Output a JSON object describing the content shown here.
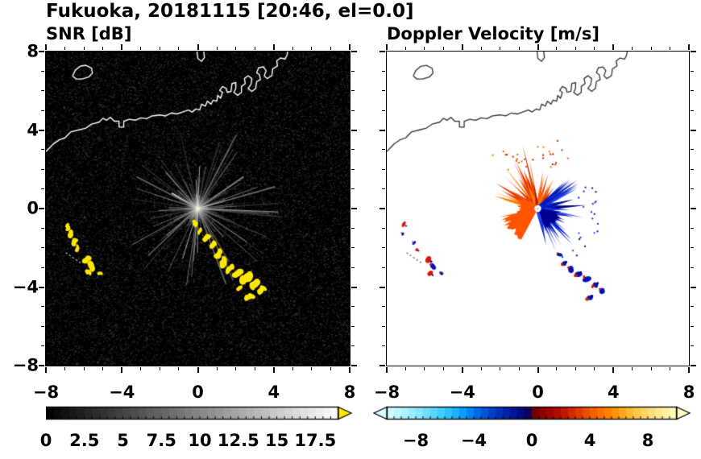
{
  "title": "Fukuoka, 20181115 [20:46, el=0.0]",
  "panels": {
    "snr": {
      "subtitle": "SNR [dB]"
    },
    "velocity": {
      "subtitle": "Doppler Velocity [m/s]"
    }
  },
  "coastline_paths": [
    [
      [
        -8,
        2.9
      ],
      [
        -7.6,
        3.3
      ],
      [
        -7.3,
        3.5
      ],
      [
        -7.0,
        3.6
      ],
      [
        -6.7,
        3.9
      ],
      [
        -6.3,
        4.0
      ],
      [
        -5.9,
        4.1
      ],
      [
        -5.6,
        4.3
      ],
      [
        -5.2,
        4.4
      ],
      [
        -5.0,
        4.6
      ],
      [
        -4.8,
        4.5
      ],
      [
        -4.6,
        4.65
      ],
      [
        -4.4,
        4.45
      ],
      [
        -4.15,
        4.45
      ],
      [
        -4.15,
        4.15
      ],
      [
        -3.9,
        4.15
      ],
      [
        -3.9,
        4.45
      ],
      [
        -3.6,
        4.55
      ],
      [
        -3.3,
        4.5
      ],
      [
        -3.0,
        4.62
      ],
      [
        -2.7,
        4.58
      ],
      [
        -2.4,
        4.72
      ],
      [
        -2.0,
        4.77
      ],
      [
        -1.7,
        4.72
      ],
      [
        -1.4,
        4.87
      ],
      [
        -1.1,
        4.82
      ],
      [
        -0.8,
        4.92
      ],
      [
        -0.5,
        5.02
      ],
      [
        -0.3,
        4.92
      ],
      [
        -0.1,
        5.07
      ],
      [
        0.1,
        5.02
      ],
      [
        0.2,
        5.32
      ],
      [
        0.4,
        5.22
      ],
      [
        0.5,
        5.47
      ],
      [
        0.7,
        5.32
      ],
      [
        0.8,
        5.52
      ],
      [
        1.0,
        5.47
      ],
      [
        1.05,
        5.77
      ],
      [
        1.2,
        5.62
      ],
      [
        1.3,
        5.92
      ],
      [
        1.15,
        6.02
      ],
      [
        1.3,
        6.22
      ],
      [
        1.5,
        6.12
      ],
      [
        1.55,
        5.92
      ],
      [
        1.75,
        5.97
      ],
      [
        1.8,
        6.37
      ],
      [
        2.0,
        6.42
      ],
      [
        2.0,
        6.12
      ],
      [
        1.9,
        5.92
      ],
      [
        2.1,
        5.77
      ],
      [
        2.3,
        5.92
      ],
      [
        2.3,
        6.22
      ],
      [
        2.5,
        6.37
      ],
      [
        2.45,
        6.62
      ],
      [
        2.65,
        6.77
      ],
      [
        2.85,
        6.62
      ],
      [
        2.8,
        6.32
      ],
      [
        2.65,
        6.12
      ],
      [
        2.85,
        5.97
      ],
      [
        3.05,
        6.12
      ],
      [
        3.1,
        6.47
      ],
      [
        3.3,
        6.57
      ],
      [
        3.25,
        6.82
      ],
      [
        3.1,
        6.92
      ],
      [
        3.2,
        7.17
      ],
      [
        3.45,
        7.22
      ],
      [
        3.6,
        7.02
      ],
      [
        3.5,
        6.77
      ],
      [
        3.65,
        6.62
      ],
      [
        3.9,
        6.77
      ],
      [
        3.95,
        7.12
      ],
      [
        4.2,
        7.27
      ],
      [
        4.15,
        7.52
      ],
      [
        4.35,
        7.67
      ],
      [
        4.6,
        7.62
      ],
      [
        4.7,
        7.82
      ],
      [
        4.75,
        8.1
      ]
    ],
    [
      [
        -6.6,
        6.75
      ],
      [
        -6.45,
        7.05
      ],
      [
        -6.2,
        7.25
      ],
      [
        -5.9,
        7.3
      ],
      [
        -5.6,
        7.15
      ],
      [
        -5.55,
        6.9
      ],
      [
        -5.75,
        6.7
      ],
      [
        -6.1,
        6.6
      ],
      [
        -6.4,
        6.6
      ],
      [
        -6.6,
        6.75
      ]
    ],
    [
      [
        -0.05,
        8.1
      ],
      [
        0.0,
        7.65
      ],
      [
        0.2,
        7.5
      ],
      [
        0.35,
        7.7
      ],
      [
        0.3,
        8.1
      ]
    ]
  ],
  "chart_data": [
    {
      "type": "heatmap",
      "panel": "snr",
      "title": "SNR [dB]",
      "xlim": [
        -8,
        8
      ],
      "ylim": [
        -8,
        8
      ],
      "xticks": [
        -8,
        -4,
        0,
        4,
        8
      ],
      "yticks": [
        -8,
        -4,
        0,
        4,
        8
      ],
      "minor_tick_step": 1,
      "background_color": "#000000",
      "coastline_color": "#ffffff",
      "radar_center": [
        0,
        0
      ],
      "beams": {
        "count": 120,
        "max_length": 4.5,
        "color": "#c8c8c8"
      },
      "noise_dot_count": 15000,
      "echo_color": "#ffe800",
      "echoes_southeast": [
        [
          -0.15,
          -0.75,
          4,
          120
        ],
        [
          0.1,
          -1.15,
          4,
          60
        ],
        [
          0.45,
          -1.5,
          5,
          45
        ],
        [
          0.8,
          -1.85,
          5,
          50
        ],
        [
          1.1,
          -2.3,
          6,
          60
        ],
        [
          1.35,
          -2.75,
          6,
          70
        ],
        [
          1.7,
          -3.05,
          6,
          40
        ],
        [
          2.1,
          -3.3,
          7,
          35
        ],
        [
          2.55,
          -3.55,
          8,
          30
        ],
        [
          3.0,
          -3.85,
          7,
          40
        ],
        [
          3.35,
          -4.15,
          6,
          45
        ],
        [
          2.7,
          -4.5,
          6,
          20
        ],
        [
          2.2,
          -4.05,
          4,
          30
        ]
      ],
      "echoes_west": [
        [
          -6.85,
          -0.95,
          4,
          100
        ],
        [
          -6.7,
          -1.3,
          5,
          80
        ],
        [
          -6.5,
          -1.7,
          5,
          70
        ],
        [
          -6.35,
          -2.05,
          4,
          75
        ],
        [
          -5.85,
          -2.6,
          5,
          40
        ],
        [
          -5.6,
          -2.95,
          6,
          110
        ],
        [
          -5.75,
          -3.25,
          4,
          150
        ],
        [
          -5.15,
          -3.3,
          3,
          0
        ]
      ],
      "dotted_streak": [
        [
          -6.95,
          -2.25
        ],
        [
          -6.15,
          -2.78
        ]
      ],
      "colorbar": {
        "min": 0,
        "max": 19,
        "segments": 38,
        "ticks": [
          0,
          2.5,
          5,
          7.5,
          10,
          12.5,
          15,
          17.5
        ],
        "style": "grayscale",
        "over_arrow_color": "#ffe800"
      }
    },
    {
      "type": "heatmap",
      "panel": "velocity",
      "title": "Doppler Velocity [m/s]",
      "xlim": [
        -8,
        8
      ],
      "ylim": [
        -8,
        8
      ],
      "xticks": [
        -8,
        -4,
        0,
        4,
        8
      ],
      "yticks": [
        -8,
        -4,
        0,
        4,
        8
      ],
      "minor_tick_step": 1,
      "background_color": "#ffffff",
      "coastline_color": "#303030",
      "positive_color": "#e01400",
      "negative_color": "#0014b4",
      "fan": {
        "positive_spikes": {
          "angle_range": [
            52,
            168
          ],
          "count": 80,
          "max_length": 2.9,
          "colors": [
            "#d42800",
            "#ff5a00",
            "#b01400",
            "#ff7b00",
            "#e83c00"
          ]
        },
        "negative_spikes": {
          "angle_range": [
            -78,
            48
          ],
          "count": 85,
          "max_length": 2.6,
          "colors": [
            "#0020c8",
            "#0010a0",
            "#2848ff",
            "#000080",
            "#1030e0"
          ]
        },
        "positive_wedges": [
          {
            "angle_range": [
              150,
              196
            ],
            "radius": 1.1
          },
          {
            "angle_range": [
              192,
              242
            ],
            "radius": 2.0
          }
        ],
        "wedge_color": "#ff5400",
        "negative_core": {
          "angle_range": [
            -70,
            -6
          ],
          "radius": 1.3,
          "color": "#000090"
        },
        "center_hole_radius": 0.18
      },
      "echoes_west": [
        [
          -7.1,
          -0.8,
          4,
          "pos"
        ],
        [
          -7.15,
          -1.3,
          3,
          "neg"
        ],
        [
          -6.55,
          -1.75,
          3,
          "neg"
        ],
        [
          -6.4,
          -2.1,
          3,
          "pos"
        ],
        [
          -5.8,
          -2.6,
          5,
          "pos"
        ],
        [
          -5.55,
          -2.95,
          5,
          "neg"
        ],
        [
          -5.7,
          -3.3,
          4,
          "pos"
        ],
        [
          -5.1,
          -3.3,
          3,
          "neg"
        ]
      ],
      "echoes_southeast": [
        [
          1.15,
          -2.35,
          4,
          "neg"
        ],
        [
          1.4,
          -2.8,
          4,
          "mix"
        ],
        [
          1.75,
          -3.1,
          5,
          "neg"
        ],
        [
          2.15,
          -3.35,
          5,
          "mix"
        ],
        [
          2.6,
          -3.6,
          6,
          "neg"
        ],
        [
          3.05,
          -3.9,
          5,
          "mix"
        ],
        [
          3.4,
          -4.2,
          5,
          "neg"
        ],
        [
          2.75,
          -4.55,
          5,
          "mix"
        ]
      ],
      "dotted_streak": [
        [
          -6.95,
          -2.25
        ],
        [
          -6.15,
          -2.78
        ]
      ],
      "colorbar": {
        "min": -10,
        "max": 10,
        "segments": 40,
        "ticks": [
          -8,
          -4,
          0,
          4,
          8
        ],
        "stops": [
          [
            -10,
            "#d8ffff"
          ],
          [
            -8,
            "#90eaff"
          ],
          [
            -6,
            "#38c8ff"
          ],
          [
            -5,
            "#10a8ff"
          ],
          [
            -4,
            "#0078f0"
          ],
          [
            -3,
            "#0048d0"
          ],
          [
            -2,
            "#0028b0"
          ],
          [
            -1,
            "#001090"
          ],
          [
            -0.3,
            "#000070"
          ],
          [
            0,
            "#600000"
          ],
          [
            0.5,
            "#800000"
          ],
          [
            1,
            "#980000"
          ],
          [
            2,
            "#b81000"
          ],
          [
            3,
            "#d83000"
          ],
          [
            4,
            "#f05800"
          ],
          [
            5,
            "#ff7800"
          ],
          [
            6,
            "#ff9c10"
          ],
          [
            7,
            "#ffc040"
          ],
          [
            8,
            "#ffd870"
          ],
          [
            9,
            "#ffec98"
          ],
          [
            10,
            "#ffffc0"
          ]
        ],
        "under_arrow_color": "#d8ffff",
        "over_arrow_color": "#ffffc8"
      }
    }
  ]
}
